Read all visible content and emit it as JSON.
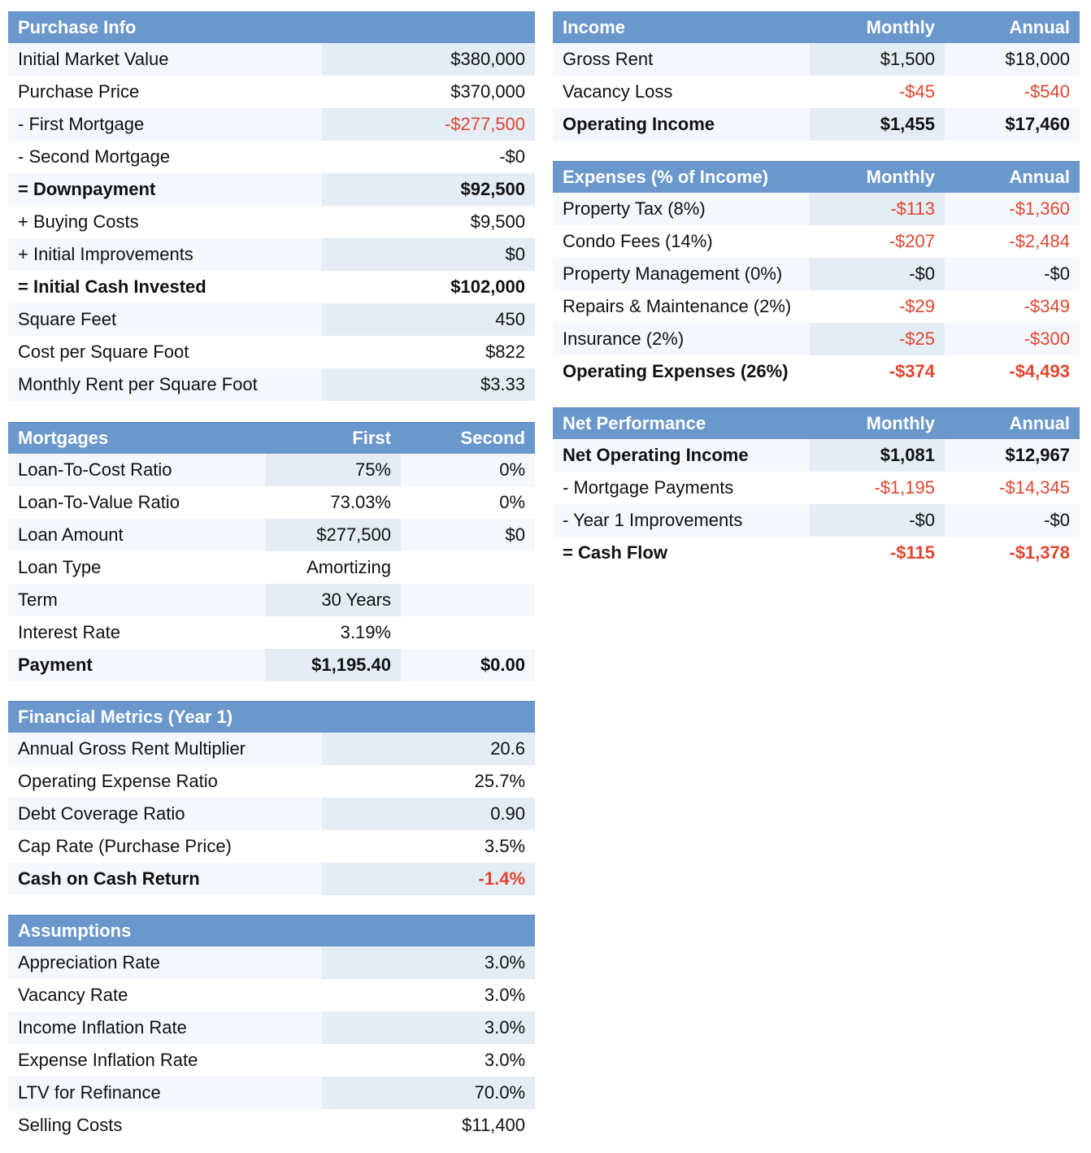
{
  "purchase_info": {
    "title": "Purchase Info",
    "rows": [
      {
        "label": "Initial Market Value",
        "value": "$380,000",
        "bold": false,
        "neg": false
      },
      {
        "label": "Purchase Price",
        "value": "$370,000",
        "bold": false,
        "neg": false
      },
      {
        "label": "- First Mortgage",
        "value": "-$277,500",
        "bold": false,
        "neg": true
      },
      {
        "label": "- Second Mortgage",
        "value": "-$0",
        "bold": false,
        "neg": false
      },
      {
        "label": "= Downpayment",
        "value": "$92,500",
        "bold": true,
        "neg": false
      },
      {
        "label": "+ Buying Costs",
        "value": "$9,500",
        "bold": false,
        "neg": false
      },
      {
        "label": "+ Initial Improvements",
        "value": "$0",
        "bold": false,
        "neg": false
      },
      {
        "label": "= Initial Cash Invested",
        "value": "$102,000",
        "bold": true,
        "neg": false
      },
      {
        "label": "Square Feet",
        "value": "450",
        "bold": false,
        "neg": false
      },
      {
        "label": "Cost per Square Foot",
        "value": "$822",
        "bold": false,
        "neg": false
      },
      {
        "label": "Monthly Rent per Square Foot",
        "value": "$3.33",
        "bold": false,
        "neg": false
      }
    ]
  },
  "mortgages": {
    "title": "Mortgages",
    "col1": "First",
    "col2": "Second",
    "rows": [
      {
        "label": "Loan-To-Cost Ratio",
        "first": "75%",
        "second": "0%",
        "bold": false
      },
      {
        "label": "Loan-To-Value Ratio",
        "first": "73.03%",
        "second": "0%",
        "bold": false
      },
      {
        "label": "Loan Amount",
        "first": "$277,500",
        "second": "$0",
        "bold": false
      },
      {
        "label": "Loan Type",
        "first": "Amortizing",
        "second": "",
        "bold": false
      },
      {
        "label": "Term",
        "first": "30 Years",
        "second": "",
        "bold": false
      },
      {
        "label": "Interest Rate",
        "first": "3.19%",
        "second": "",
        "bold": false
      },
      {
        "label": "Payment",
        "first": "$1,195.40",
        "second": "$0.00",
        "bold": true
      }
    ]
  },
  "financial_metrics": {
    "title": "Financial Metrics (Year 1)",
    "rows": [
      {
        "label": "Annual Gross Rent Multiplier",
        "value": "20.6",
        "bold": false,
        "neg": false
      },
      {
        "label": "Operating Expense Ratio",
        "value": "25.7%",
        "bold": false,
        "neg": false
      },
      {
        "label": "Debt Coverage Ratio",
        "value": "0.90",
        "bold": false,
        "neg": false
      },
      {
        "label": "Cap Rate (Purchase Price)",
        "value": "3.5%",
        "bold": false,
        "neg": false
      },
      {
        "label": "Cash on Cash Return",
        "value": "-1.4%",
        "bold": true,
        "neg": true
      }
    ]
  },
  "assumptions": {
    "title": "Assumptions",
    "rows": [
      {
        "label": "Appreciation Rate",
        "value": "3.0%",
        "bold": false,
        "neg": false
      },
      {
        "label": "Vacancy Rate",
        "value": "3.0%",
        "bold": false,
        "neg": false
      },
      {
        "label": "Income Inflation Rate",
        "value": "3.0%",
        "bold": false,
        "neg": false
      },
      {
        "label": "Expense Inflation Rate",
        "value": "3.0%",
        "bold": false,
        "neg": false
      },
      {
        "label": "LTV for Refinance",
        "value": "70.0%",
        "bold": false,
        "neg": false
      },
      {
        "label": "Selling Costs",
        "value": "$11,400",
        "bold": false,
        "neg": false
      }
    ]
  },
  "income": {
    "title": "Income",
    "col1": "Monthly",
    "col2": "Annual",
    "rows": [
      {
        "label": "Gross Rent",
        "monthly": "$1,500",
        "annual": "$18,000",
        "bold": false,
        "neg": false
      },
      {
        "label": "Vacancy Loss",
        "monthly": "-$45",
        "annual": "-$540",
        "bold": false,
        "neg": true
      },
      {
        "label": "Operating Income",
        "monthly": "$1,455",
        "annual": "$17,460",
        "bold": true,
        "neg": false
      }
    ]
  },
  "expenses": {
    "title": "Expenses (% of Income)",
    "col1": "Monthly",
    "col2": "Annual",
    "rows": [
      {
        "label": "Property Tax (8%)",
        "monthly": "-$113",
        "annual": "-$1,360",
        "bold": false,
        "neg": true
      },
      {
        "label": "Condo Fees (14%)",
        "monthly": "-$207",
        "annual": "-$2,484",
        "bold": false,
        "neg": true
      },
      {
        "label": "Property Management (0%)",
        "monthly": "-$0",
        "annual": "-$0",
        "bold": false,
        "neg": false
      },
      {
        "label": "Repairs & Maintenance (2%)",
        "monthly": "-$29",
        "annual": "-$349",
        "bold": false,
        "neg": true
      },
      {
        "label": "Insurance (2%)",
        "monthly": "-$25",
        "annual": "-$300",
        "bold": false,
        "neg": true
      },
      {
        "label": "Operating Expenses (26%)",
        "monthly": "-$374",
        "annual": "-$4,493",
        "bold": true,
        "neg": true
      }
    ]
  },
  "net_performance": {
    "title": "Net Performance",
    "col1": "Monthly",
    "col2": "Annual",
    "rows": [
      {
        "label": "Net Operating Income",
        "monthly": "$1,081",
        "annual": "$12,967",
        "bold": true,
        "neg": false
      },
      {
        "label": "- Mortgage Payments",
        "monthly": "-$1,195",
        "annual": "-$14,345",
        "bold": false,
        "neg": true
      },
      {
        "label": "- Year 1 Improvements",
        "monthly": "-$0",
        "annual": "-$0",
        "bold": false,
        "neg": false
      },
      {
        "label": "= Cash Flow",
        "monthly": "-$115",
        "annual": "-$1,378",
        "bold": true,
        "neg": true
      }
    ]
  },
  "colors": {
    "header_bg": "#6a98cc",
    "negative": "#e0472f",
    "row_shade": "#e4ecf5"
  }
}
